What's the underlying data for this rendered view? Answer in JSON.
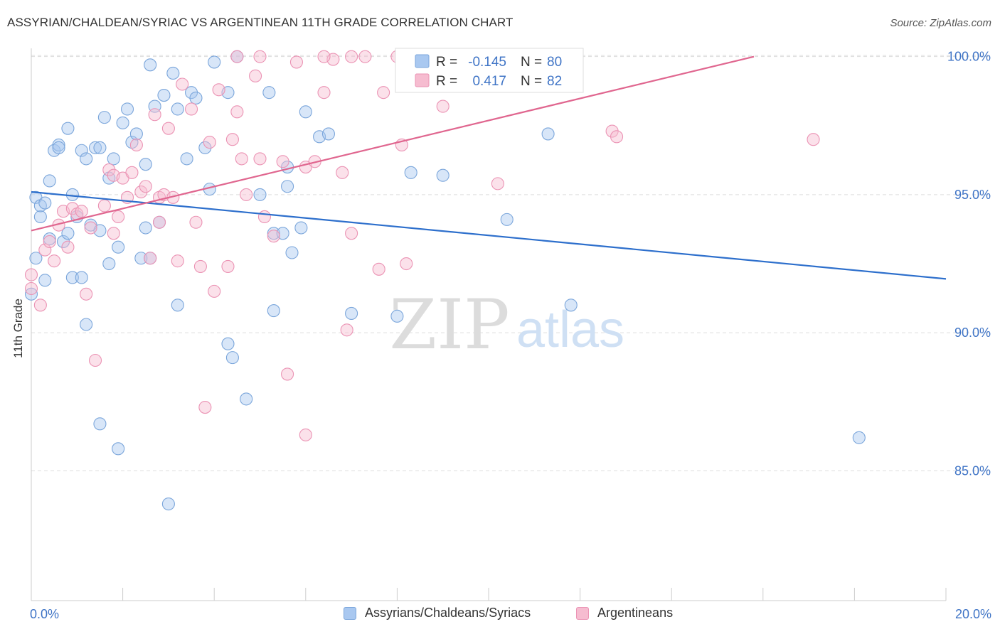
{
  "title": "ASSYRIAN/CHALDEAN/SYRIAC VS ARGENTINEAN 11TH GRADE CORRELATION CHART",
  "source": "Source: ZipAtlas.com",
  "watermark": {
    "zip": "ZIP",
    "atlas": "atlas"
  },
  "colors": {
    "blue_fill": "#a9c8f0",
    "blue_stroke": "#7ba6db",
    "blue_line": "#2d6fcc",
    "pink_fill": "#f6bcd0",
    "pink_stroke": "#eb93b4",
    "pink_line": "#e0668f",
    "axis_label": "#3f74c6",
    "grid": "#dddddd"
  },
  "legend_stats": [
    {
      "r_label": "R =",
      "r_value": "-0.145",
      "n_label": "N =",
      "n_value": "80",
      "color": "blue"
    },
    {
      "r_label": "R =",
      "r_value": "0.417",
      "n_label": "N =",
      "n_value": "82",
      "color": "pink"
    }
  ],
  "chart_data": {
    "type": "scatter",
    "title": "ASSYRIAN/CHALDEAN/SYRIAC VS ARGENTINEAN 11TH GRADE CORRELATION CHART",
    "ylabel": "11th Grade",
    "xlabel": "",
    "xlim": [
      0,
      20
    ],
    "ylim": [
      80.3,
      100.3
    ],
    "x_ticks": [
      0,
      20
    ],
    "x_tick_labels": [
      "0.0%",
      "20.0%"
    ],
    "y_ticks": [
      85,
      90,
      95,
      100
    ],
    "y_tick_labels": [
      "85.0%",
      "90.0%",
      "95.0%",
      "100.0%"
    ],
    "grid": true,
    "legend_position": "top-center",
    "series": [
      {
        "name": "Assyrians/Chaldeans/Syriacs",
        "color": "blue",
        "trend": {
          "x": [
            0,
            20
          ],
          "y": [
            95.1,
            91.95
          ]
        },
        "points": [
          [
            0.1,
            94.9
          ],
          [
            0.1,
            92.7
          ],
          [
            0.0,
            91.4
          ],
          [
            0.2,
            94.2
          ],
          [
            0.2,
            94.6
          ],
          [
            0.3,
            94.7
          ],
          [
            0.3,
            91.9
          ],
          [
            0.4,
            93.4
          ],
          [
            0.4,
            95.5
          ],
          [
            0.5,
            96.6
          ],
          [
            0.6,
            96.8
          ],
          [
            0.6,
            96.7
          ],
          [
            0.7,
            93.3
          ],
          [
            0.8,
            93.6
          ],
          [
            0.8,
            97.4
          ],
          [
            0.9,
            95.0
          ],
          [
            0.9,
            92.0
          ],
          [
            1.0,
            94.2
          ],
          [
            1.1,
            96.6
          ],
          [
            1.1,
            92.0
          ],
          [
            1.2,
            96.3
          ],
          [
            1.2,
            90.3
          ],
          [
            1.3,
            93.9
          ],
          [
            1.4,
            96.7
          ],
          [
            1.5,
            93.7
          ],
          [
            1.5,
            96.7
          ],
          [
            1.6,
            97.8
          ],
          [
            1.7,
            95.6
          ],
          [
            1.7,
            92.5
          ],
          [
            1.8,
            96.3
          ],
          [
            1.9,
            93.1
          ],
          [
            2.0,
            97.6
          ],
          [
            2.1,
            98.1
          ],
          [
            2.2,
            96.9
          ],
          [
            2.3,
            97.2
          ],
          [
            2.4,
            92.7
          ],
          [
            2.5,
            93.8
          ],
          [
            2.5,
            96.1
          ],
          [
            2.6,
            99.7
          ],
          [
            2.6,
            92.7
          ],
          [
            2.7,
            98.2
          ],
          [
            2.8,
            94.0
          ],
          [
            2.9,
            98.6
          ],
          [
            3.0,
            83.8
          ],
          [
            3.1,
            99.4
          ],
          [
            3.2,
            98.1
          ],
          [
            3.2,
            91.0
          ],
          [
            3.4,
            96.3
          ],
          [
            3.5,
            98.7
          ],
          [
            3.6,
            98.5
          ],
          [
            3.8,
            96.7
          ],
          [
            3.9,
            95.2
          ],
          [
            4.0,
            99.8
          ],
          [
            4.3,
            98.7
          ],
          [
            4.3,
            89.6
          ],
          [
            4.4,
            89.1
          ],
          [
            4.5,
            100.0
          ],
          [
            4.7,
            87.6
          ],
          [
            5.0,
            95.0
          ],
          [
            5.2,
            98.7
          ],
          [
            5.3,
            93.6
          ],
          [
            5.3,
            90.8
          ],
          [
            5.5,
            93.6
          ],
          [
            5.6,
            95.3
          ],
          [
            5.6,
            96.0
          ],
          [
            5.7,
            92.9
          ],
          [
            5.9,
            93.8
          ],
          [
            6.0,
            98.0
          ],
          [
            6.3,
            97.1
          ],
          [
            6.5,
            97.2
          ],
          [
            7.0,
            90.7
          ],
          [
            8.0,
            90.6
          ],
          [
            8.3,
            95.8
          ],
          [
            9.0,
            95.7
          ],
          [
            10.4,
            94.1
          ],
          [
            11.3,
            97.2
          ],
          [
            11.8,
            91.0
          ],
          [
            18.1,
            86.2
          ],
          [
            1.9,
            85.8
          ],
          [
            1.5,
            86.7
          ]
        ]
      },
      {
        "name": "Argentineans",
        "color": "pink",
        "trend": {
          "x": [
            0,
            15.8
          ],
          "y": [
            93.7,
            100.0
          ]
        },
        "points": [
          [
            0.0,
            92.1
          ],
          [
            0.0,
            91.6
          ],
          [
            0.2,
            91.0
          ],
          [
            0.3,
            93.0
          ],
          [
            0.4,
            93.3
          ],
          [
            0.5,
            92.6
          ],
          [
            0.6,
            93.9
          ],
          [
            0.7,
            94.4
          ],
          [
            0.8,
            93.1
          ],
          [
            0.9,
            94.5
          ],
          [
            1.0,
            94.3
          ],
          [
            1.1,
            94.4
          ],
          [
            1.2,
            91.4
          ],
          [
            1.3,
            93.8
          ],
          [
            1.4,
            89.0
          ],
          [
            1.6,
            94.6
          ],
          [
            1.7,
            95.9
          ],
          [
            1.8,
            95.7
          ],
          [
            1.8,
            93.6
          ],
          [
            1.9,
            94.2
          ],
          [
            2.0,
            95.6
          ],
          [
            2.1,
            94.9
          ],
          [
            2.2,
            95.8
          ],
          [
            2.3,
            96.8
          ],
          [
            2.4,
            95.1
          ],
          [
            2.5,
            95.3
          ],
          [
            2.6,
            92.7
          ],
          [
            2.7,
            97.9
          ],
          [
            2.8,
            94.9
          ],
          [
            2.8,
            94.0
          ],
          [
            2.9,
            95.0
          ],
          [
            3.0,
            97.4
          ],
          [
            3.1,
            94.9
          ],
          [
            3.2,
            92.6
          ],
          [
            3.3,
            99.0
          ],
          [
            3.5,
            98.1
          ],
          [
            3.6,
            94.0
          ],
          [
            3.7,
            92.4
          ],
          [
            3.8,
            87.3
          ],
          [
            3.9,
            96.9
          ],
          [
            4.0,
            91.5
          ],
          [
            4.1,
            98.8
          ],
          [
            4.3,
            92.4
          ],
          [
            4.4,
            97.0
          ],
          [
            4.5,
            98.0
          ],
          [
            4.6,
            96.3
          ],
          [
            4.7,
            95.0
          ],
          [
            4.9,
            99.3
          ],
          [
            5.0,
            96.3
          ],
          [
            5.0,
            100.0
          ],
          [
            5.1,
            94.2
          ],
          [
            5.3,
            93.5
          ],
          [
            5.5,
            96.2
          ],
          [
            5.6,
            88.5
          ],
          [
            5.8,
            99.8
          ],
          [
            6.0,
            96.0
          ],
          [
            6.0,
            86.3
          ],
          [
            6.2,
            96.2
          ],
          [
            6.4,
            98.7
          ],
          [
            6.6,
            99.9
          ],
          [
            6.8,
            95.8
          ],
          [
            6.9,
            90.1
          ],
          [
            7.0,
            93.6
          ],
          [
            7.3,
            100.0
          ],
          [
            7.6,
            92.3
          ],
          [
            7.7,
            98.7
          ],
          [
            8.0,
            100.0
          ],
          [
            8.1,
            96.8
          ],
          [
            8.2,
            92.5
          ],
          [
            8.6,
            100.0
          ],
          [
            9.0,
            98.2
          ],
          [
            9.5,
            100.0
          ],
          [
            9.6,
            100.0
          ],
          [
            10.0,
            100.0
          ],
          [
            10.2,
            95.4
          ],
          [
            12.7,
            97.3
          ],
          [
            12.8,
            97.1
          ],
          [
            17.1,
            97.0
          ],
          [
            8.1,
            100.0
          ],
          [
            6.4,
            100.0
          ],
          [
            4.5,
            100.0
          ],
          [
            7.0,
            100.0
          ]
        ]
      }
    ]
  }
}
